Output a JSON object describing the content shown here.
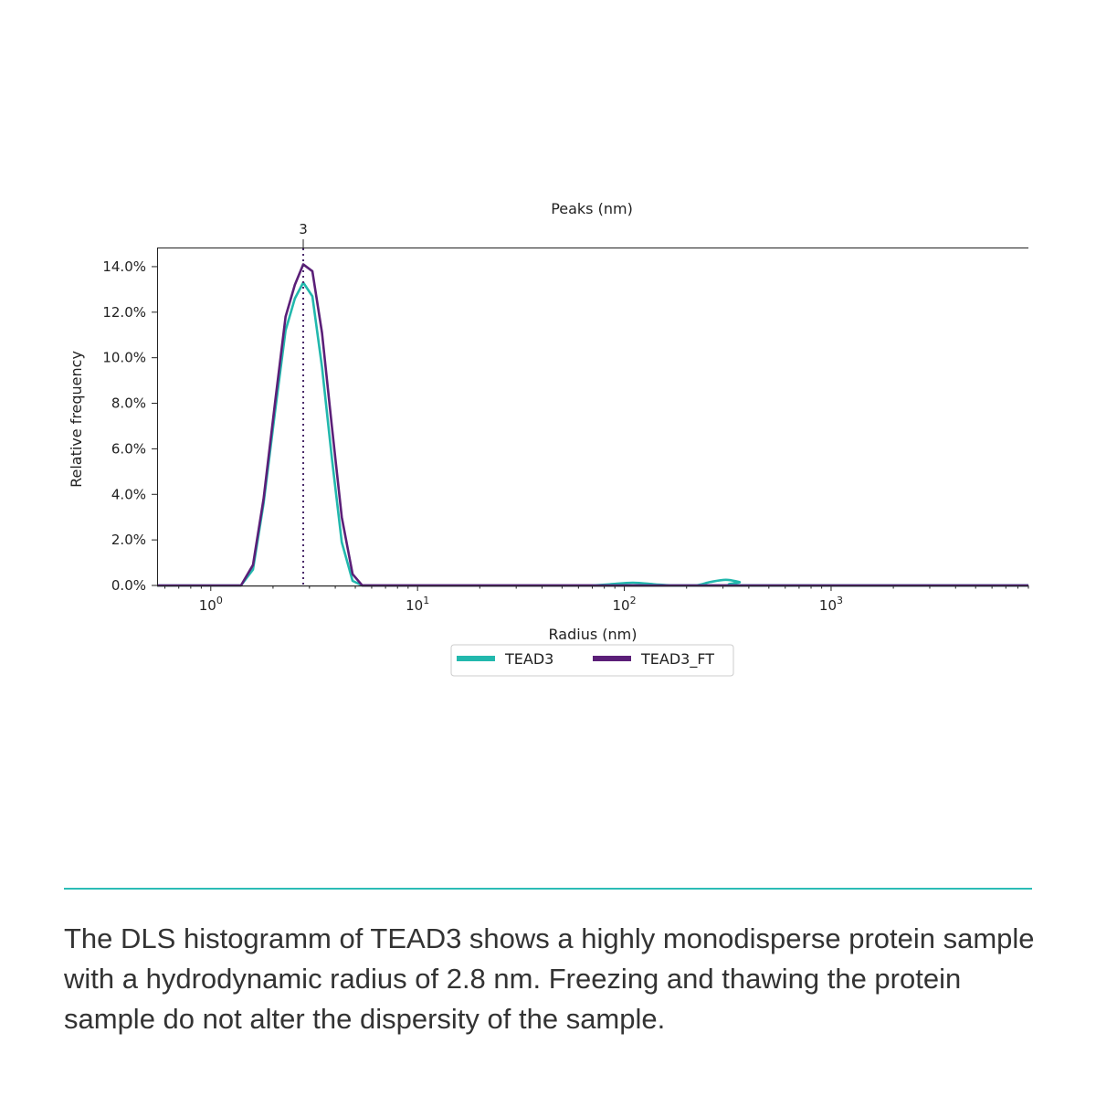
{
  "chart_data": {
    "type": "line",
    "top_axis_label": "Peaks (nm)",
    "peak_marker": {
      "x": 2.8,
      "label": "3"
    },
    "xlabel": "Radius (nm)",
    "ylabel": "Relative frequency",
    "xscale": "log",
    "xlim": [
      0.55,
      9000
    ],
    "ylim": [
      0,
      14.8
    ],
    "y_ticks": [
      {
        "value": 0,
        "label": "0.0%"
      },
      {
        "value": 2,
        "label": "2.0%"
      },
      {
        "value": 4,
        "label": "4.0%"
      },
      {
        "value": 6,
        "label": "6.0%"
      },
      {
        "value": 8,
        "label": "8.0%"
      },
      {
        "value": 10,
        "label": "10.0%"
      },
      {
        "value": 12,
        "label": "12.0%"
      },
      {
        "value": 14,
        "label": "14.0%"
      }
    ],
    "x_ticks": [
      {
        "value": 1,
        "base": "10",
        "exp": "0"
      },
      {
        "value": 10,
        "base": "10",
        "exp": "1"
      },
      {
        "value": 100,
        "base": "10",
        "exp": "2"
      },
      {
        "value": 1000,
        "base": "10",
        "exp": "3"
      }
    ],
    "legend_position": "bottom-center",
    "series": [
      {
        "name": "TEAD3",
        "color": "#22b8ad",
        "points": [
          [
            0.55,
            0
          ],
          [
            1.4,
            0
          ],
          [
            1.6,
            0.7
          ],
          [
            1.8,
            3.6
          ],
          [
            2.05,
            7.7
          ],
          [
            2.3,
            11.2
          ],
          [
            2.55,
            12.6
          ],
          [
            2.8,
            13.3
          ],
          [
            3.1,
            12.7
          ],
          [
            3.45,
            9.6
          ],
          [
            3.85,
            5.6
          ],
          [
            4.3,
            1.9
          ],
          [
            4.85,
            0.2
          ],
          [
            5.4,
            0
          ],
          [
            9000,
            0
          ]
        ]
      },
      {
        "name": "TEAD3_FT",
        "color": "#5b1f78",
        "points": [
          [
            0.55,
            0
          ],
          [
            1.4,
            0
          ],
          [
            1.6,
            0.9
          ],
          [
            1.8,
            3.8
          ],
          [
            2.05,
            8.1
          ],
          [
            2.3,
            11.8
          ],
          [
            2.55,
            13.2
          ],
          [
            2.8,
            14.1
          ],
          [
            3.1,
            13.8
          ],
          [
            3.45,
            11.1
          ],
          [
            3.85,
            7.0
          ],
          [
            4.3,
            3.0
          ],
          [
            4.85,
            0.5
          ],
          [
            5.4,
            0
          ],
          [
            9000,
            0
          ]
        ]
      }
    ],
    "series_bumps": [
      {
        "series": "TEAD3",
        "points": [
          [
            70,
            0
          ],
          [
            85,
            0.05
          ],
          [
            110,
            0.12
          ],
          [
            140,
            0.05
          ],
          [
            170,
            0
          ],
          [
            220,
            0
          ],
          [
            260,
            0.15
          ],
          [
            310,
            0.25
          ],
          [
            360,
            0.15
          ],
          [
            420,
            0
          ],
          [
            9000,
            0
          ]
        ]
      },
      {
        "series": "TEAD3_FT",
        "points": [
          [
            5.4,
            0
          ],
          [
            9000,
            0
          ]
        ]
      }
    ]
  },
  "caption": "The DLS histogramm of TEAD3 shows a highly monodisperse protein sample with a hydrodynamic radius of 2.8 nm. Freezing and thawing the protein sample do not alter the dispersity of the sample."
}
